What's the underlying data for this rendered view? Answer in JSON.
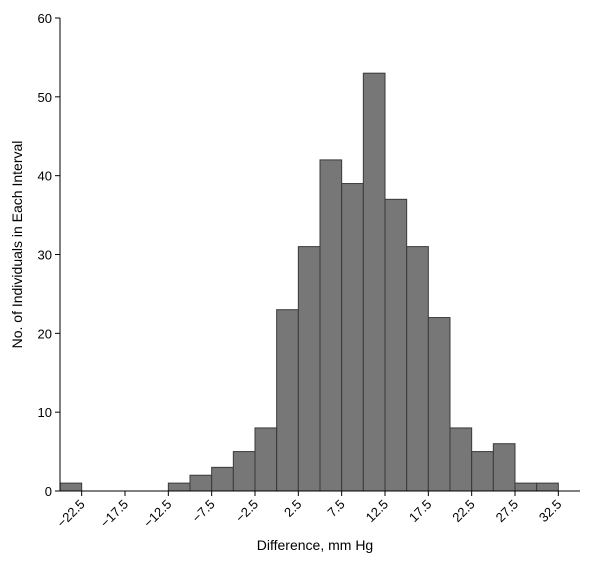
{
  "chart_data": {
    "type": "bar",
    "xlabel": "Difference, mm Hg",
    "ylabel": "No. of Individuals in Each Interval",
    "ylim": [
      0,
      60
    ],
    "y_ticks": [
      0,
      10,
      20,
      30,
      40,
      50,
      60
    ],
    "x_range": [
      -25,
      35
    ],
    "x_ticks": [
      -22.5,
      -17.5,
      -12.5,
      -7.5,
      -2.5,
      2.5,
      7.5,
      12.5,
      17.5,
      22.5,
      27.5,
      32.5
    ],
    "x_tick_labels": [
      "−22.5",
      "−17.5",
      "−12.5",
      "−7.5",
      "−2.5",
      "2.5",
      "7.5",
      "12.5",
      "17.5",
      "22.5",
      "27.5",
      "32.5"
    ],
    "bin_width": 2.5,
    "bin_centers": [
      -23.75,
      -21.25,
      -18.75,
      -16.25,
      -13.75,
      -11.25,
      -8.75,
      -6.25,
      -3.75,
      -1.25,
      1.25,
      3.75,
      6.25,
      8.75,
      11.25,
      13.75,
      16.25,
      18.75,
      21.25,
      23.75,
      26.25,
      28.75,
      31.25,
      33.75
    ],
    "values": [
      1,
      0,
      0,
      0,
      0,
      1,
      2,
      3,
      5,
      8,
      23,
      31,
      42,
      39,
      53,
      37,
      31,
      22,
      8,
      5,
      6,
      1,
      1,
      0
    ],
    "bar_color": "#777777",
    "grid": false,
    "legend": "none"
  }
}
